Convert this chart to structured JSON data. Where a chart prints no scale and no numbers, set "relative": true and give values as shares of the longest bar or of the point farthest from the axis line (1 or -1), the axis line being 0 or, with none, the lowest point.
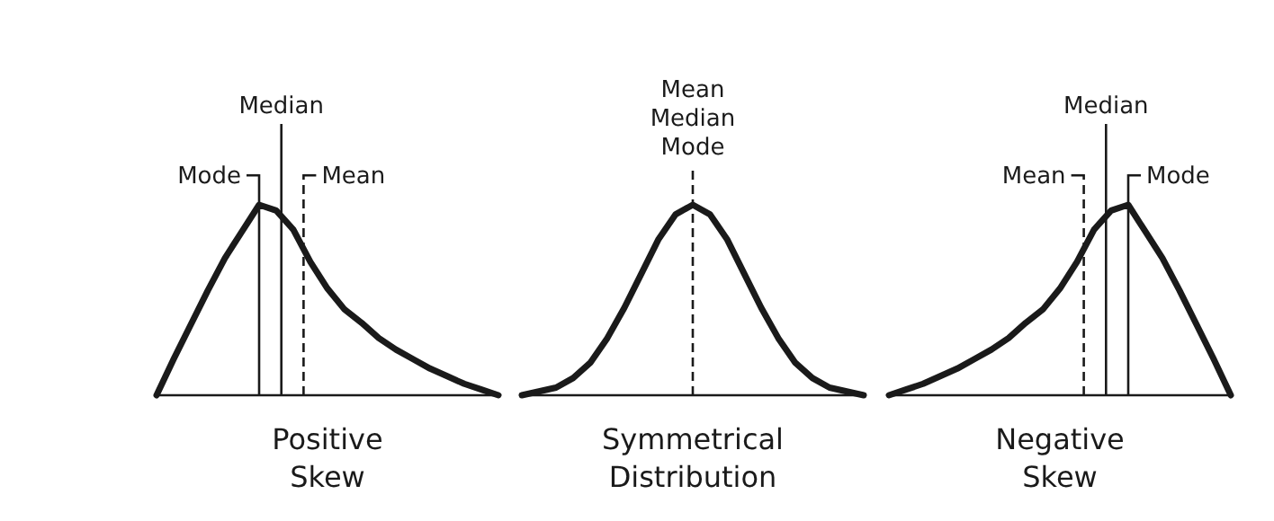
{
  "chart_data": [
    {
      "type": "line",
      "xlabel": "Positive Skew",
      "relative": true,
      "color": "#1a1a1a",
      "categories": [
        null,
        null,
        null,
        null,
        null,
        null,
        null,
        null,
        null,
        null,
        null,
        null,
        null,
        null,
        null,
        null,
        null,
        null,
        null,
        null,
        null
      ],
      "values": [
        0,
        0.19,
        0.37,
        0.55,
        0.72,
        0.86,
        1,
        0.97,
        0.87,
        0.7,
        0.56,
        0.45,
        0.38,
        0.3,
        0.24,
        0.19,
        0.14,
        0.1,
        0.06,
        0.03,
        0
      ],
      "annotations": [
        "Mode",
        "Median",
        "Mean"
      ]
    },
    {
      "type": "line",
      "xlabel": "Symmetrical Distribution",
      "relative": true,
      "color": "#1a1a1a",
      "categories": [
        null,
        null,
        null,
        null,
        null,
        null,
        null,
        null,
        null,
        null,
        null,
        null,
        null,
        null,
        null,
        null,
        null,
        null,
        null,
        null,
        null
      ],
      "values": [
        0,
        0.02,
        0.04,
        0.09,
        0.17,
        0.3,
        0.46,
        0.64,
        0.82,
        0.95,
        1,
        0.95,
        0.82,
        0.64,
        0.46,
        0.3,
        0.17,
        0.09,
        0.04,
        0.02,
        0
      ],
      "annotations": [
        "Mean Median Mode"
      ]
    },
    {
      "type": "line",
      "xlabel": "Negative Skew",
      "relative": true,
      "color": "#1a1a1a",
      "categories": [
        null,
        null,
        null,
        null,
        null,
        null,
        null,
        null,
        null,
        null,
        null,
        null,
        null,
        null,
        null,
        null,
        null,
        null,
        null,
        null,
        null
      ],
      "values": [
        0,
        0.03,
        0.06,
        0.1,
        0.14,
        0.19,
        0.24,
        0.3,
        0.38,
        0.45,
        0.56,
        0.7,
        0.87,
        0.97,
        1,
        0.86,
        0.72,
        0.55,
        0.37,
        0.19,
        0
      ],
      "annotations": [
        "Mean",
        "Median",
        "Mode"
      ]
    }
  ]
}
